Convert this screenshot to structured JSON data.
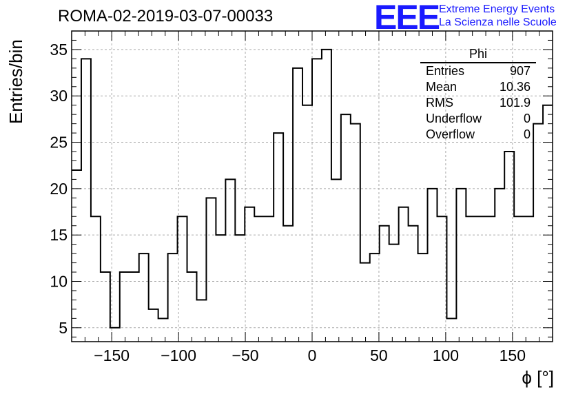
{
  "header": {
    "title": "ROMA-02-2019-03-07-00033",
    "logo": "EEE",
    "logo_line1": "Extreme Energy Events",
    "logo_line2": "La Scienza nelle Scuole"
  },
  "stats": {
    "name": "Phi",
    "rows": [
      {
        "label": "Entries",
        "value": "907"
      },
      {
        "label": "Mean",
        "value": "10.36"
      },
      {
        "label": "RMS",
        "value": "101.9"
      },
      {
        "label": "Underflow",
        "value": "0"
      },
      {
        "label": "Overflow",
        "value": "0"
      }
    ]
  },
  "chart_data": {
    "type": "histogram",
    "title": "ROMA-02-2019-03-07-00033",
    "xlabel": "ϕ [°]",
    "ylabel": "Entries/bin",
    "xlim": [
      -180,
      180
    ],
    "ylim": [
      3.5,
      37
    ],
    "bin_start": -180,
    "bin_width": 7.2,
    "values": [
      22,
      34,
      17,
      11,
      5,
      11,
      11,
      13,
      7,
      6,
      13,
      17,
      11,
      8,
      19,
      15,
      21,
      15,
      18,
      17,
      17,
      26,
      16,
      33,
      29,
      34,
      35,
      21,
      28,
      27,
      12,
      13,
      16,
      14,
      18,
      16,
      13,
      20,
      17,
      6,
      20,
      17,
      17,
      17,
      20,
      24,
      17,
      17,
      27,
      29
    ],
    "xticks": [
      -150,
      -100,
      -50,
      0,
      50,
      100,
      150
    ],
    "xtick_labels": [
      "−150",
      "−100",
      "−50",
      "0",
      "50",
      "100",
      "150"
    ],
    "yticks": [
      5,
      10,
      15,
      20,
      25,
      30,
      35
    ],
    "grid": true,
    "line_color": "#000000"
  }
}
